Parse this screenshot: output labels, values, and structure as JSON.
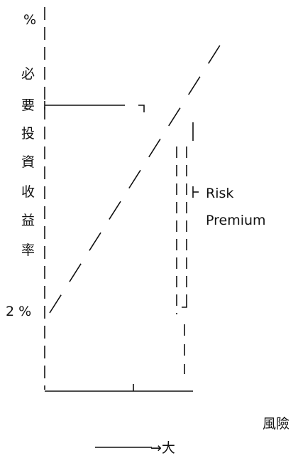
{
  "figure": {
    "y_axis_chars": [
      "%",
      "必",
      "要",
      "投",
      "資",
      "收",
      "益",
      "率"
    ],
    "y_tick_label": "2 %",
    "risk_premium_line1": "Risk",
    "risk_premium_line2": "Premium",
    "x_axis_label": "風險",
    "x_arrow_end": "→大"
  },
  "colors": {
    "ink": "#111111",
    "background": "#ffffff"
  }
}
